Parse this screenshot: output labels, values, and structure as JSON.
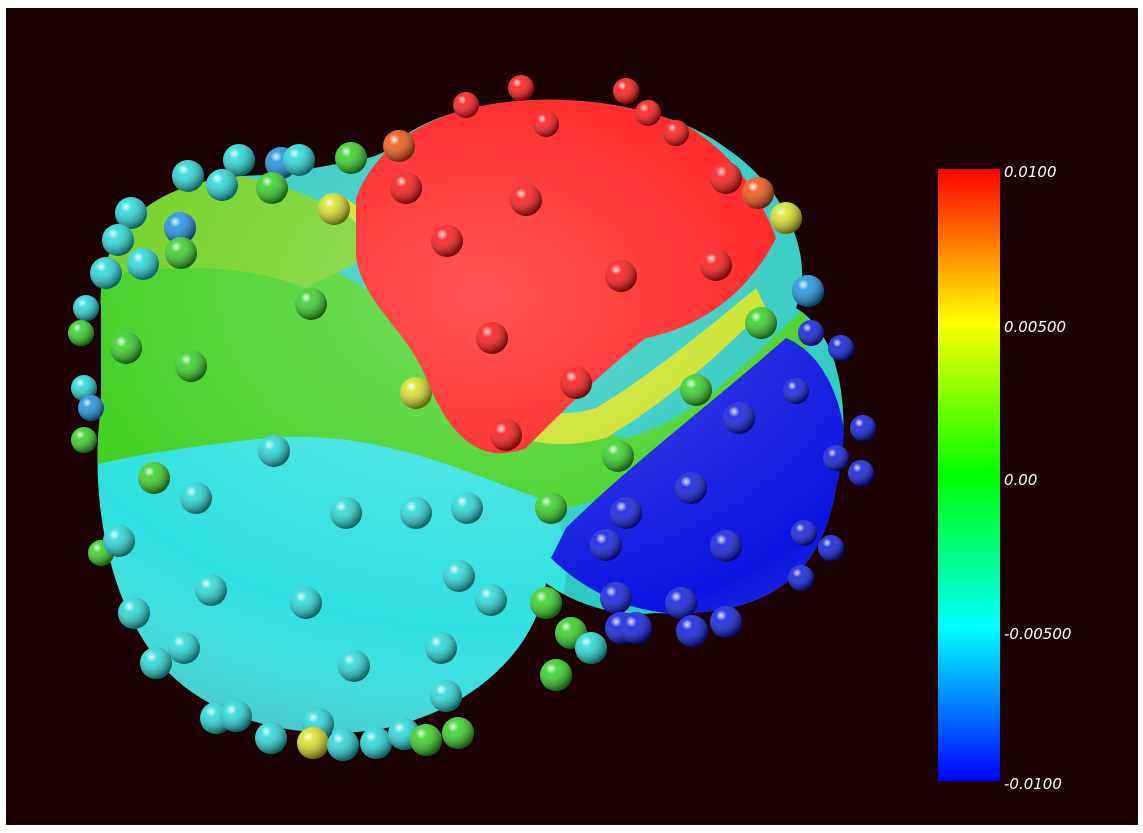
{
  "scalar_bar": {
    "ticks": [
      "0.0100",
      "0.00500",
      "0.00",
      "-0.00500",
      "-0.0100"
    ],
    "range": [
      -0.01,
      0.01
    ],
    "colormap": [
      "#0000ff",
      "#00ffff",
      "#00ff00",
      "#ffff00",
      "#ff0000"
    ]
  },
  "colors": {
    "background": "#1c0202",
    "high": "#ff1010",
    "mid": "#30d020",
    "low_cyan": "#20d8d8",
    "low": "#0818e0"
  }
}
